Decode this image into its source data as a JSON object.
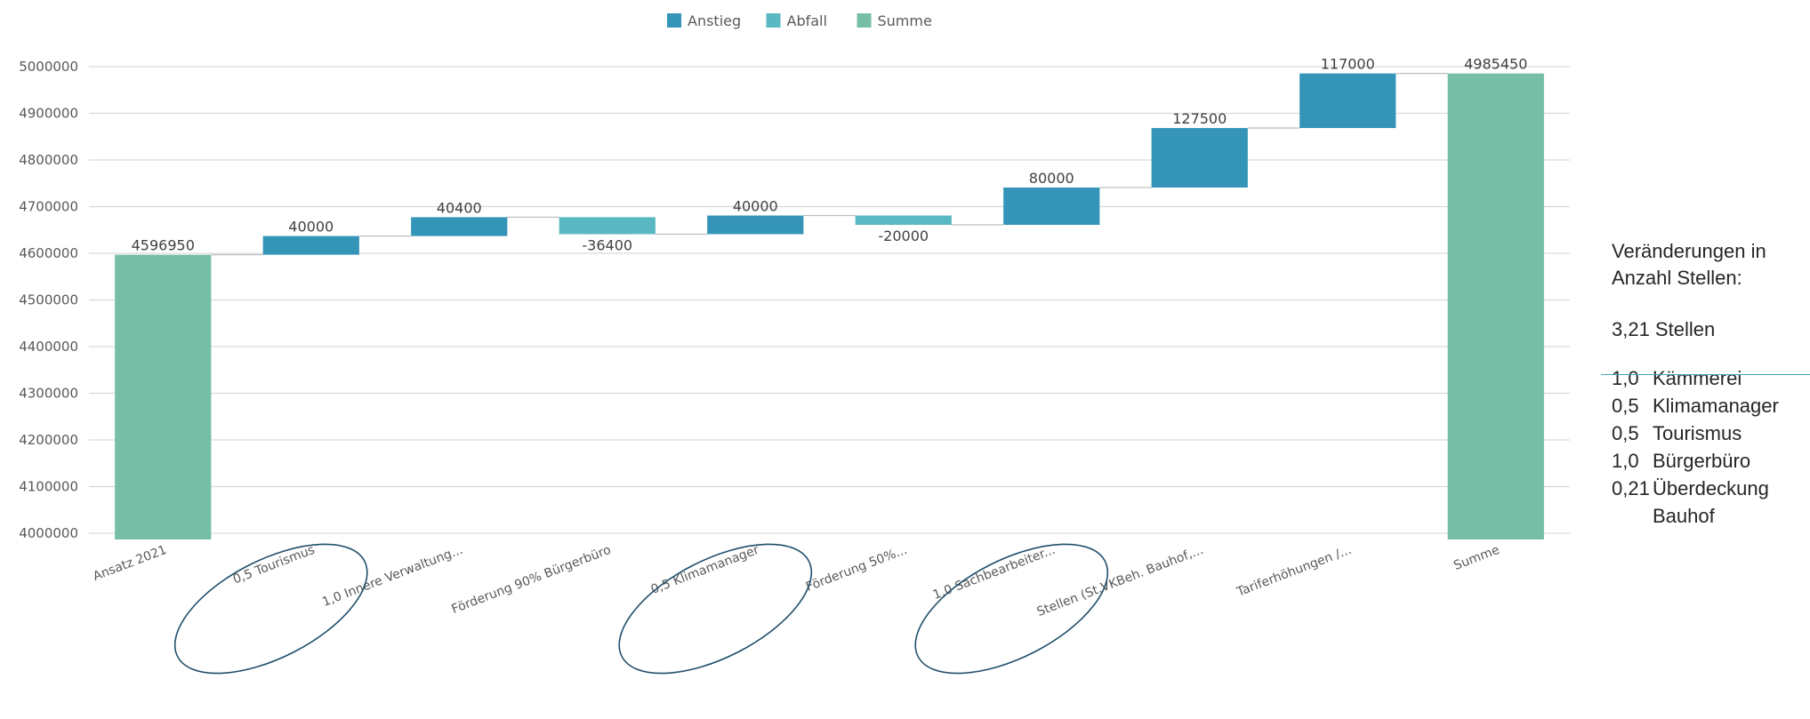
{
  "legend": [
    {
      "label": "Anstieg",
      "color": "#3595b8"
    },
    {
      "label": "Abfall",
      "color": "#5ab8c2"
    },
    {
      "label": "Summe",
      "color": "#76bea5"
    }
  ],
  "side_note": {
    "header_line1": "Veränderungen in",
    "header_line2": "Anzahl Stellen:",
    "total": "3,21 Stellen",
    "items": [
      {
        "num": "1,0",
        "text": "Kämmerei"
      },
      {
        "num": "0,5",
        "text": "Klimamanager"
      },
      {
        "num": "0,5",
        "text": "Tourismus"
      },
      {
        "num": "1,0",
        "text": "Bürgerbüro"
      },
      {
        "num": "0,21",
        "text": "Überdeckung"
      },
      {
        "num": "",
        "text": "Bauhof"
      }
    ]
  },
  "chart_data": {
    "type": "waterfall",
    "title": "",
    "xlabel": "",
    "ylabel": "",
    "ylim": [
      4000000,
      5000000
    ],
    "yticks": [
      4000000,
      4100000,
      4200000,
      4300000,
      4400000,
      4500000,
      4600000,
      4700000,
      4800000,
      4900000,
      5000000
    ],
    "grid": true,
    "legend_position": "top-center",
    "categories": [
      "Ansatz 2021",
      "0,5 Tourismus",
      "1,0 Innere Verwaltung...",
      "Förderung 90% Bürgerbüro",
      "0,5 Klimamanager",
      "Förderung 50%...",
      "1,0 Sachbearbeiter...",
      "Stellen (St.VKBeh. Bauhof,...",
      "Tariferhöhungen /...",
      "Summe"
    ],
    "values": [
      4596950,
      40000,
      40400,
      -36400,
      40000,
      -20000,
      80000,
      127500,
      117000,
      4985450
    ],
    "kinds": [
      "total",
      "increase",
      "increase",
      "decrease",
      "increase",
      "decrease",
      "increase",
      "increase",
      "increase",
      "total"
    ],
    "data_labels": [
      "4596950",
      "40000",
      "40400",
      "-36400",
      "40000",
      "-20000",
      "80000",
      "127500",
      "117000",
      "4985450"
    ],
    "highlighted_categories": [
      "0,5 Tourismus",
      "0,5 Klimamanager",
      "1,0 Sachbearbeiter..."
    ]
  }
}
